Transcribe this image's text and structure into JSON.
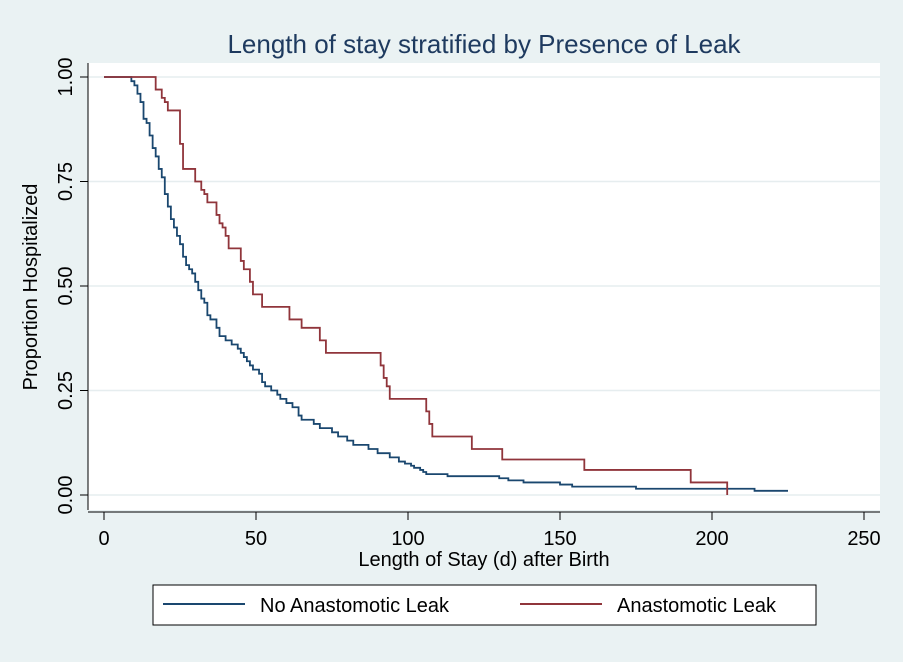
{
  "chart_data": {
    "type": "line",
    "title": "Length of stay stratified by Presence of Leak",
    "xlabel": "Length of Stay (d) after Birth",
    "ylabel": "Proportion Hospitalized",
    "xlim": [
      0,
      250
    ],
    "ylim": [
      0,
      1
    ],
    "x_ticks": [
      "0",
      "50",
      "100",
      "150",
      "200",
      "250"
    ],
    "y_ticks": [
      "0.00",
      "0.25",
      "0.50",
      "0.75",
      "1.00"
    ],
    "grid": true,
    "legend_position": "bottom",
    "series": [
      {
        "name": "No Anastomotic Leak",
        "color": "#1a476f",
        "points": [
          [
            0,
            1.0
          ],
          [
            8,
            1.0
          ],
          [
            9,
            0.99
          ],
          [
            10,
            0.98
          ],
          [
            11,
            0.96
          ],
          [
            12,
            0.94
          ],
          [
            13,
            0.9
          ],
          [
            14,
            0.89
          ],
          [
            15,
            0.86
          ],
          [
            16,
            0.83
          ],
          [
            17,
            0.81
          ],
          [
            18,
            0.78
          ],
          [
            19,
            0.76
          ],
          [
            20,
            0.72
          ],
          [
            21,
            0.69
          ],
          [
            22,
            0.66
          ],
          [
            23,
            0.64
          ],
          [
            24,
            0.62
          ],
          [
            25,
            0.6
          ],
          [
            26,
            0.57
          ],
          [
            27,
            0.55
          ],
          [
            28,
            0.54
          ],
          [
            29,
            0.53
          ],
          [
            30,
            0.51
          ],
          [
            31,
            0.49
          ],
          [
            32,
            0.47
          ],
          [
            33,
            0.46
          ],
          [
            34,
            0.43
          ],
          [
            35,
            0.42
          ],
          [
            37,
            0.4
          ],
          [
            38,
            0.38
          ],
          [
            40,
            0.37
          ],
          [
            42,
            0.36
          ],
          [
            44,
            0.35
          ],
          [
            45,
            0.34
          ],
          [
            46,
            0.33
          ],
          [
            47,
            0.32
          ],
          [
            48,
            0.31
          ],
          [
            49,
            0.3
          ],
          [
            51,
            0.29
          ],
          [
            52,
            0.27
          ],
          [
            53,
            0.26
          ],
          [
            55,
            0.25
          ],
          [
            57,
            0.24
          ],
          [
            58,
            0.23
          ],
          [
            60,
            0.22
          ],
          [
            62,
            0.21
          ],
          [
            64,
            0.19
          ],
          [
            65,
            0.18
          ],
          [
            69,
            0.17
          ],
          [
            71,
            0.16
          ],
          [
            75,
            0.15
          ],
          [
            77,
            0.14
          ],
          [
            80,
            0.13
          ],
          [
            82,
            0.12
          ],
          [
            87,
            0.11
          ],
          [
            90,
            0.1
          ],
          [
            94,
            0.09
          ],
          [
            97,
            0.08
          ],
          [
            99,
            0.075
          ],
          [
            101,
            0.07
          ],
          [
            102,
            0.065
          ],
          [
            104,
            0.06
          ],
          [
            105,
            0.055
          ],
          [
            106,
            0.05
          ],
          [
            111,
            0.05
          ],
          [
            113,
            0.045
          ],
          [
            130,
            0.04
          ],
          [
            133,
            0.035
          ],
          [
            138,
            0.03
          ],
          [
            150,
            0.025
          ],
          [
            154,
            0.02
          ],
          [
            175,
            0.015
          ],
          [
            214,
            0.01
          ],
          [
            225,
            0.01
          ]
        ]
      },
      {
        "name": "Anastomotic Leak",
        "color": "#90353b",
        "points": [
          [
            0,
            1.0
          ],
          [
            16,
            1.0
          ],
          [
            17,
            0.97
          ],
          [
            19,
            0.95
          ],
          [
            20,
            0.94
          ],
          [
            21,
            0.92
          ],
          [
            24,
            0.92
          ],
          [
            25,
            0.84
          ],
          [
            26,
            0.78
          ],
          [
            29,
            0.78
          ],
          [
            30,
            0.75
          ],
          [
            32,
            0.73
          ],
          [
            33,
            0.72
          ],
          [
            34,
            0.7
          ],
          [
            36,
            0.7
          ],
          [
            37,
            0.67
          ],
          [
            38,
            0.65
          ],
          [
            39,
            0.64
          ],
          [
            40,
            0.62
          ],
          [
            41,
            0.59
          ],
          [
            44,
            0.59
          ],
          [
            45,
            0.56
          ],
          [
            46,
            0.54
          ],
          [
            48,
            0.51
          ],
          [
            49,
            0.48
          ],
          [
            51,
            0.48
          ],
          [
            52,
            0.45
          ],
          [
            60,
            0.45
          ],
          [
            61,
            0.42
          ],
          [
            64,
            0.42
          ],
          [
            65,
            0.4
          ],
          [
            70,
            0.4
          ],
          [
            71,
            0.37
          ],
          [
            73,
            0.34
          ],
          [
            90,
            0.34
          ],
          [
            91,
            0.31
          ],
          [
            92,
            0.28
          ],
          [
            93,
            0.26
          ],
          [
            94,
            0.23
          ],
          [
            105,
            0.23
          ],
          [
            106,
            0.2
          ],
          [
            107,
            0.17
          ],
          [
            108,
            0.14
          ],
          [
            120,
            0.14
          ],
          [
            121,
            0.11
          ],
          [
            130,
            0.11
          ],
          [
            131,
            0.085
          ],
          [
            157,
            0.085
          ],
          [
            158,
            0.06
          ],
          [
            192,
            0.06
          ],
          [
            193,
            0.03
          ],
          [
            205,
            0.03
          ],
          [
            205,
            0.0
          ]
        ]
      }
    ]
  }
}
